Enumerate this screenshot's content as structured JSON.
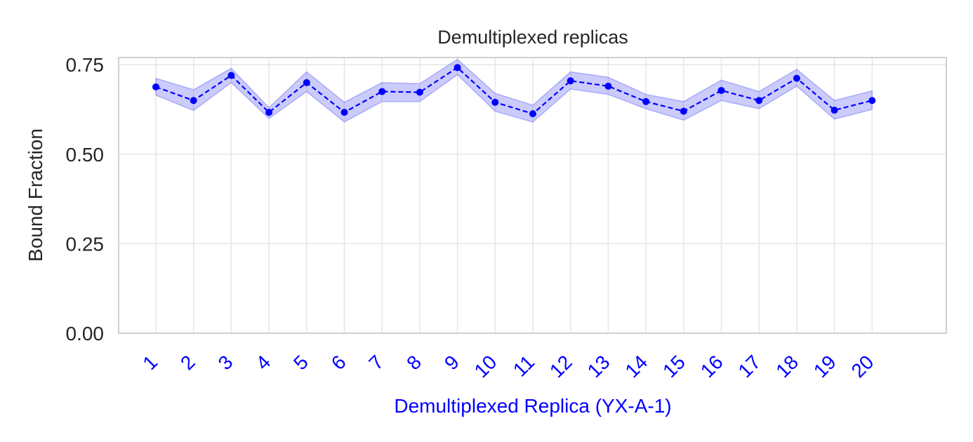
{
  "chart_data": {
    "type": "line",
    "title": "Demultiplexed replicas",
    "xlabel": "Demultiplexed Replica (YX-A-1)",
    "ylabel": "Bound Fraction",
    "categories": [
      "1",
      "2",
      "3",
      "4",
      "5",
      "6",
      "7",
      "8",
      "9",
      "10",
      "11",
      "12",
      "13",
      "14",
      "15",
      "16",
      "17",
      "18",
      "19",
      "20"
    ],
    "yticks": [
      "0.00",
      "0.25",
      "0.50",
      "0.75"
    ],
    "ylim": [
      0,
      0.77
    ],
    "grid": true,
    "series": [
      {
        "values": [
          0.688,
          0.65,
          0.72,
          0.617,
          0.7,
          0.617,
          0.675,
          0.673,
          0.742,
          0.645,
          0.613,
          0.705,
          0.69,
          0.647,
          0.62,
          0.678,
          0.65,
          0.712,
          0.623,
          0.65
        ],
        "lower": [
          0.665,
          0.622,
          0.7,
          0.6,
          0.675,
          0.59,
          0.647,
          0.647,
          0.722,
          0.62,
          0.59,
          0.682,
          0.667,
          0.627,
          0.595,
          0.65,
          0.627,
          0.69,
          0.598,
          0.625
        ],
        "upper": [
          0.712,
          0.68,
          0.74,
          0.63,
          0.73,
          0.645,
          0.7,
          0.697,
          0.765,
          0.67,
          0.637,
          0.73,
          0.715,
          0.667,
          0.647,
          0.707,
          0.675,
          0.737,
          0.65,
          0.677
        ],
        "color": "#0000ff",
        "band_color": "#6b6bf7",
        "line_style": "dashed",
        "marker": "circle"
      }
    ]
  }
}
